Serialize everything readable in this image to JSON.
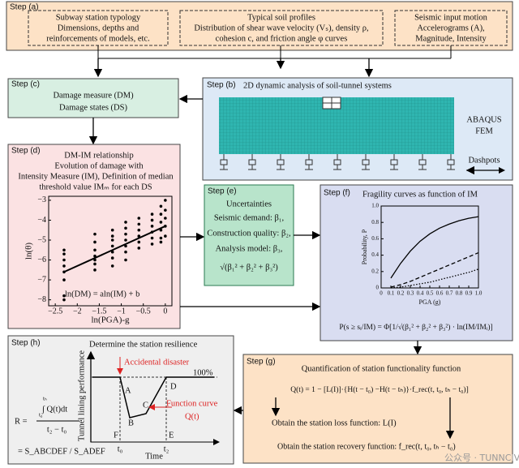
{
  "steps": {
    "a": {
      "label": "Step (a)",
      "boxes": [
        [
          "Subway station typology",
          "Dimensions, depths and",
          "reinforcements of models, etc."
        ],
        [
          "Typical soil profiles",
          "Distribution of shear wave velocity (Vₛ), density ρ,",
          "cohesion c, and friction angle φ curves"
        ],
        [
          "Seismic input motion",
          "Accelerograms (A),",
          "Magnitude, Intensity"
        ]
      ]
    },
    "b": {
      "label": "Step (b)",
      "title": "2D dynamic analysis of soil-tunnel systems",
      "software": [
        "ABAQUS",
        "FEM"
      ],
      "dashpots": "Dashpots"
    },
    "c": {
      "label": "Step (c)",
      "lines": [
        "Damage measure (DM)",
        "Damage states (DS)"
      ]
    },
    "d": {
      "label": "Step (d)",
      "lines": [
        "DM-IM relationship",
        "Evolution of damage with",
        "Intensity Measure (IM), Definition of median",
        "threshold value IMₘ for each DS"
      ],
      "chart": {
        "type": "scatter",
        "xlabel": "ln(PGA)-g",
        "ylabel": "ln(θ)",
        "equation": "ln(DM) = aln(IM) + b",
        "xlim": [
          -2.65,
          0.15
        ],
        "ylim": [
          -8.3,
          -2.8
        ],
        "xticks": [
          {
            "value": -2.5,
            "label": "−2.5"
          },
          {
            "value": -2,
            "label": "−2"
          },
          {
            "value": -1.5,
            "label": "−1.5"
          },
          {
            "value": -1,
            "label": "−1"
          },
          {
            "value": -0.5,
            "label": "−0.5"
          },
          0
        ],
        "yticks": [
          {
            "value": -3,
            "label": "−3"
          },
          {
            "value": -4,
            "label": "−4"
          },
          {
            "value": -5,
            "label": "−5"
          },
          {
            "value": -6,
            "label": "−6"
          },
          {
            "value": -7,
            "label": "−7"
          },
          {
            "value": -8,
            "label": "−8"
          }
        ],
        "x": [
          -2.3,
          -2.3,
          -2.3,
          -2.3,
          -2.3,
          -2.3,
          -2.3,
          -2.3,
          -1.6,
          -1.6,
          -1.6,
          -1.6,
          -1.6,
          -1.6,
          -1.6,
          -1.2,
          -1.2,
          -1.2,
          -1.2,
          -1.2,
          -1.2,
          -1.2,
          -0.9,
          -0.9,
          -0.9,
          -0.9,
          -0.9,
          -0.9,
          -0.9,
          -0.6,
          -0.6,
          -0.6,
          -0.6,
          -0.6,
          -0.6,
          -0.3,
          -0.3,
          -0.3,
          -0.3,
          -0.3,
          -0.3,
          -0.1,
          -0.1,
          -0.1,
          -0.1,
          -0.1,
          -0.1,
          0,
          0,
          0,
          0,
          0
        ],
        "y": [
          -5.5,
          -5.7,
          -6.0,
          -6.3,
          -6.6,
          -7.0,
          -7.8,
          -8.0,
          -4.7,
          -5.1,
          -5.5,
          -5.8,
          -6.0,
          -6.2,
          -6.5,
          -4.5,
          -4.8,
          -5.0,
          -5.3,
          -5.6,
          -5.9,
          -6.3,
          -4.1,
          -4.4,
          -4.7,
          -5.0,
          -5.3,
          -5.6,
          -6.0,
          -3.9,
          -4.2,
          -4.5,
          -4.8,
          -5.1,
          -5.4,
          -3.7,
          -4.0,
          -4.3,
          -4.6,
          -4.9,
          -5.2,
          -3.3,
          -3.7,
          -4.1,
          -4.5,
          -4.9,
          -5.1,
          -3.0,
          -3.5,
          -3.9,
          -4.3,
          -4.8
        ],
        "fit": {
          "x": [
            -2.3,
            0
          ],
          "y": [
            -6.6,
            -4.3
          ]
        }
      }
    },
    "e": {
      "label": "Step (e)",
      "lines": [
        "Uncertainties",
        "Seismic demand: β₁,",
        "Construction quality: β₂,",
        "Analysis model: β₃,",
        "√(β₁² + β₂² + β₃²)"
      ]
    },
    "f": {
      "label": "Step (f)",
      "title": "Fragility curves as function of IM",
      "formula": "P(s ≥ sᵢ/IM) = Φ[1/√(β₁² + β₂² + β₃²) · ln(IM/IMᵢ)]",
      "chart": {
        "type": "line",
        "xlabel": "PGA (g)",
        "ylabel": "Probability, P",
        "xlim": [
          0,
          1
        ],
        "ylim": [
          0,
          1
        ],
        "xticks": [
          0,
          0.1,
          0.2,
          0.3,
          0.4,
          0.5,
          0.6,
          0.7,
          0.8,
          0.9,
          {
            "value": 1,
            "label": "1.0"
          }
        ],
        "yticks": [
          0,
          0.2,
          0.4,
          0.6,
          0.8,
          {
            "value": 1,
            "label": "1.0"
          }
        ],
        "x": [
          0.1,
          0.2,
          0.3,
          0.4,
          0.5,
          0.6,
          0.7,
          0.8,
          0.9,
          1.0
        ],
        "series": [
          {
            "style": "solid",
            "color": "#000000",
            "values": [
              0.12,
              0.3,
              0.45,
              0.57,
              0.66,
              0.73,
              0.78,
              0.82,
              0.85,
              0.87
            ]
          },
          {
            "style": "dashed",
            "color": "#000000",
            "values": [
              0.01,
              0.04,
              0.08,
              0.13,
              0.18,
              0.23,
              0.28,
              0.33,
              0.38,
              0.43
            ]
          },
          {
            "style": "dotted",
            "color": "#000000",
            "values": [
              0,
              0.01,
              0.03,
              0.05,
              0.07,
              0.1,
              0.13,
              0.16,
              0.19,
              0.23
            ]
          }
        ]
      }
    },
    "g": {
      "label": "Step (g)",
      "title": "Quantification of station functionality function",
      "formula": "Q(t) = 1 − [L(I)]·{H(t − t₀) −H(t − tₕ)}·f_rec(t, t₀, tₕ − t₀)]",
      "loss": "Obtain the station loss function: L(I)",
      "recovery": "Obtain the station recovery function: f_rec(t, t₀, tₕ − t₀)"
    },
    "h": {
      "label": "Step (h)",
      "title": "Determine the station resilience",
      "ylabel": "Tunnel lining performance",
      "xlabel": "Time",
      "t0": "t₀",
      "t2": "t₂",
      "full": "100%",
      "disaster": "Accidental disaster",
      "function_curve": "Function curve",
      "q": "Q(t)",
      "points": [
        "A",
        "B",
        "C",
        "D",
        "E",
        "F"
      ],
      "formula": {
        "lhs": "R =",
        "numerator": "∫ Q(t)dt",
        "upper": "tₕ",
        "lower": "t₀",
        "denominator": "t₂ − t₀",
        "rhs": "= S_ABCDEF / S_ADEF"
      }
    }
  },
  "watermark": "公众号 · TUNNCIVIL"
}
